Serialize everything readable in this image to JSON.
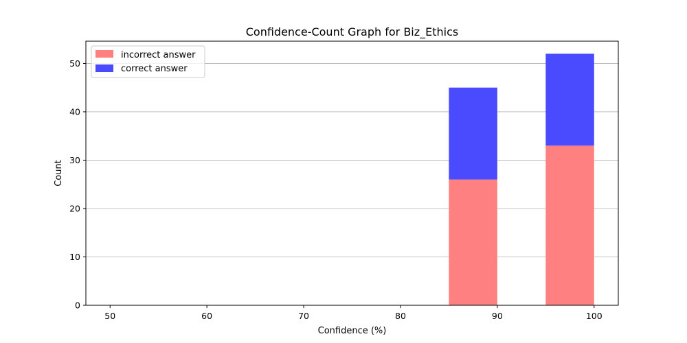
{
  "chart_data": {
    "type": "bar",
    "stacked": true,
    "title": "Confidence-Count Graph for Biz_Ethics",
    "xlabel": "Confidence (%)",
    "ylabel": "Count",
    "xlim": [
      47.5,
      102.5
    ],
    "ylim": [
      0,
      54.6
    ],
    "xticks": [
      50,
      60,
      70,
      80,
      90,
      100
    ],
    "yticks": [
      0,
      10,
      20,
      30,
      40,
      50
    ],
    "grid": "y",
    "legend_position": "top-left",
    "bar_width": 5,
    "series": [
      {
        "name": "incorrect answer",
        "color": "#ff8080",
        "x": [
          87.5,
          97.5
        ],
        "values": [
          26,
          33
        ]
      },
      {
        "name": "correct answer",
        "color": "#4a4aff",
        "x": [
          87.5,
          97.5
        ],
        "values": [
          19,
          19
        ]
      }
    ]
  }
}
